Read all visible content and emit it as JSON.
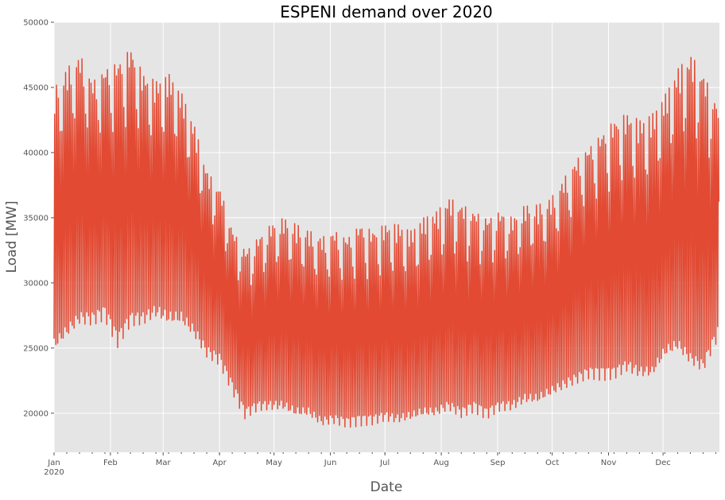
{
  "chart_data": {
    "type": "line",
    "title": "ESPENI demand over 2020",
    "xlabel": "Date",
    "ylabel": "Load [MW]",
    "ylim": [
      17000,
      50000
    ],
    "yticks": [
      20000,
      25000,
      30000,
      35000,
      40000,
      45000,
      50000
    ],
    "x_range": [
      "2020-01-01",
      "2021-01-01"
    ],
    "x_ticks": [
      {
        "date": "2020-01-01",
        "label": "Jan",
        "sublabel": "2020"
      },
      {
        "date": "2020-02-01",
        "label": "Feb"
      },
      {
        "date": "2020-03-01",
        "label": "Mar"
      },
      {
        "date": "2020-04-01",
        "label": "Apr"
      },
      {
        "date": "2020-05-01",
        "label": "May"
      },
      {
        "date": "2020-06-01",
        "label": "Jun"
      },
      {
        "date": "2020-07-01",
        "label": "Jul"
      },
      {
        "date": "2020-08-01",
        "label": "Aug"
      },
      {
        "date": "2020-09-01",
        "label": "Sep"
      },
      {
        "date": "2020-10-01",
        "label": "Oct"
      },
      {
        "date": "2020-11-01",
        "label": "Nov"
      },
      {
        "date": "2020-12-01",
        "label": "Dec"
      }
    ],
    "grid": true,
    "series": [
      {
        "color": "#E24A33",
        "sampling": "daily min/max envelope",
        "x": [
          "2020-01-01",
          "2020-01-08",
          "2020-01-15",
          "2020-01-22",
          "2020-01-29",
          "2020-02-05",
          "2020-02-12",
          "2020-02-19",
          "2020-02-26",
          "2020-03-04",
          "2020-03-11",
          "2020-03-18",
          "2020-03-25",
          "2020-04-01",
          "2020-04-08",
          "2020-04-15",
          "2020-04-22",
          "2020-04-29",
          "2020-05-06",
          "2020-05-13",
          "2020-05-20",
          "2020-05-27",
          "2020-06-03",
          "2020-06-10",
          "2020-06-17",
          "2020-06-24",
          "2020-07-01",
          "2020-07-08",
          "2020-07-15",
          "2020-07-22",
          "2020-07-29",
          "2020-08-05",
          "2020-08-12",
          "2020-08-19",
          "2020-08-26",
          "2020-09-02",
          "2020-09-09",
          "2020-09-16",
          "2020-09-23",
          "2020-09-30",
          "2020-10-07",
          "2020-10-14",
          "2020-10-21",
          "2020-10-28",
          "2020-11-04",
          "2020-11-11",
          "2020-11-18",
          "2020-11-25",
          "2020-12-02",
          "2020-12-09",
          "2020-12-16",
          "2020-12-23",
          "2020-12-31"
        ],
        "daily_max": [
          45000,
          46500,
          47500,
          45500,
          46500,
          47000,
          48000,
          46000,
          45500,
          46000,
          44500,
          42000,
          38500,
          37200,
          34000,
          32500,
          33500,
          34500,
          35000,
          34500,
          34000,
          33500,
          34000,
          33500,
          34500,
          34000,
          34500,
          34500,
          34000,
          35000,
          35500,
          36500,
          36000,
          35500,
          35000,
          35500,
          35000,
          36000,
          36000,
          36500,
          38000,
          39500,
          40500,
          41500,
          42500,
          43000,
          42500,
          43000,
          44500,
          46500,
          47500,
          46000,
          43500
        ],
        "daily_min": [
          24500,
          25500,
          26500,
          26500,
          27000,
          25000,
          26500,
          26500,
          27000,
          26500,
          26500,
          25500,
          24000,
          23500,
          21500,
          19500,
          20000,
          20000,
          20000,
          19500,
          19500,
          18800,
          19000,
          18800,
          19000,
          19000,
          19200,
          19000,
          19200,
          19500,
          19500,
          20000,
          19500,
          20000,
          19500,
          20000,
          20000,
          20500,
          20500,
          21000,
          21500,
          22000,
          22500,
          22500,
          22500,
          23000,
          22500,
          22500,
          24000,
          24500,
          23500,
          23000,
          25500
        ]
      }
    ]
  }
}
